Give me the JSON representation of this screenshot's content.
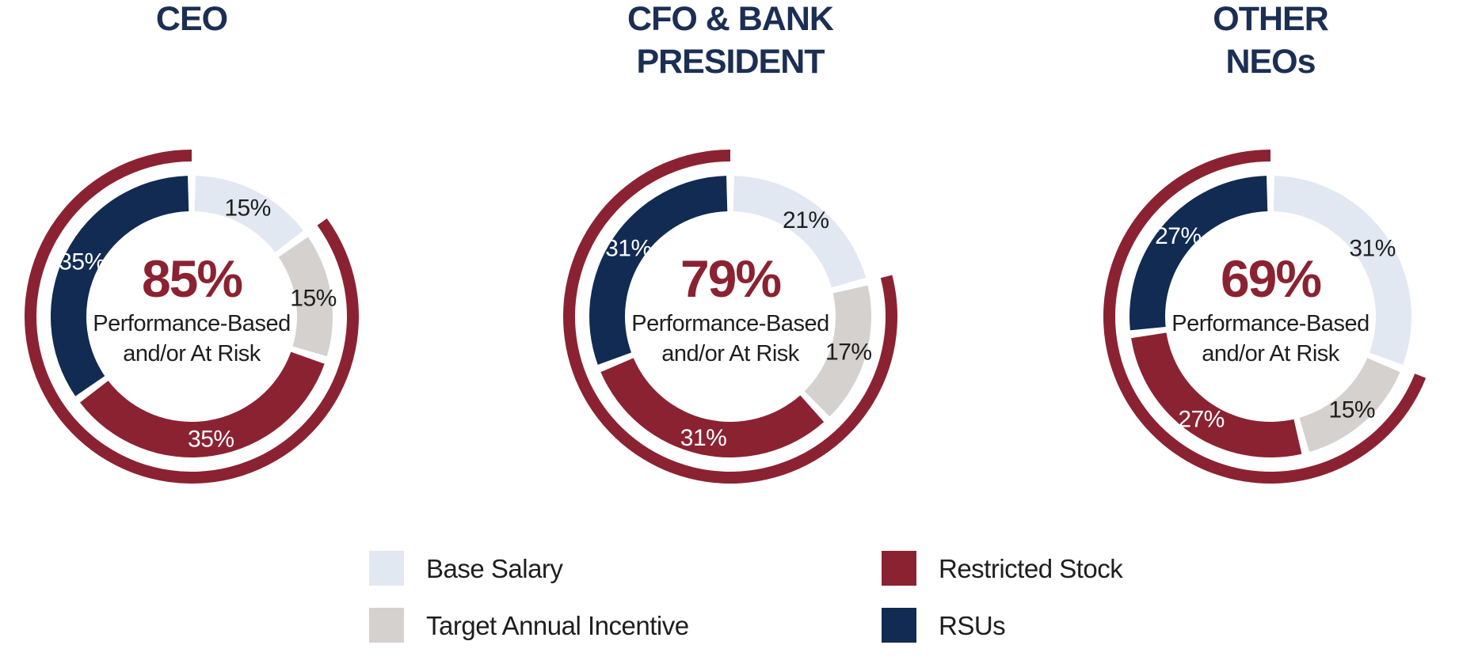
{
  "colors": {
    "base_salary": "#e2e8f2",
    "target_annual_incentive": "#d5d1cf",
    "restricted_stock": "#8b2232",
    "rsus": "#112b53",
    "title": "#1b2f55",
    "center_pct": "#8b2232"
  },
  "chart_data": {
    "type": "pie",
    "variant": "donut-with-outer-arc",
    "categories": [
      "Base Salary",
      "Target Annual Incentive",
      "Restricted Stock",
      "RSUs"
    ],
    "category_keys": [
      "base_salary",
      "target_annual_incentive",
      "restricted_stock",
      "rsus"
    ],
    "outer_arc_meaning": "Performance-Based and/or At Risk",
    "charts": [
      {
        "title_lines": [
          "CEO"
        ],
        "center_value": "85%",
        "center_label_lines": [
          "Performance-Based",
          "and/or At Risk"
        ],
        "values": [
          15,
          15,
          35,
          35
        ],
        "labels": [
          "15%",
          "15%",
          "35%",
          "35%"
        ],
        "outer_arc_value": 85
      },
      {
        "title_lines": [
          "CFO & BANK",
          "PRESIDENT"
        ],
        "center_value": "79%",
        "center_label_lines": [
          "Performance-Based",
          "and/or At Risk"
        ],
        "values": [
          21,
          17,
          31,
          31
        ],
        "labels": [
          "21%",
          "17%",
          "31%",
          "31%"
        ],
        "outer_arc_value": 79
      },
      {
        "title_lines": [
          "OTHER",
          "NEOs"
        ],
        "center_value": "69%",
        "center_label_lines": [
          "Performance-Based",
          "and/or At Risk"
        ],
        "values": [
          31,
          15,
          27,
          27
        ],
        "labels": [
          "31%",
          "15%",
          "27%",
          "27%"
        ],
        "outer_arc_value": 69
      }
    ]
  },
  "legend": {
    "items": [
      {
        "label": "Base Salary",
        "key": "base_salary"
      },
      {
        "label": "Target Annual Incentive",
        "key": "target_annual_incentive"
      },
      {
        "label": "Restricted Stock",
        "key": "restricted_stock"
      },
      {
        "label": "RSUs",
        "key": "rsus"
      }
    ]
  }
}
